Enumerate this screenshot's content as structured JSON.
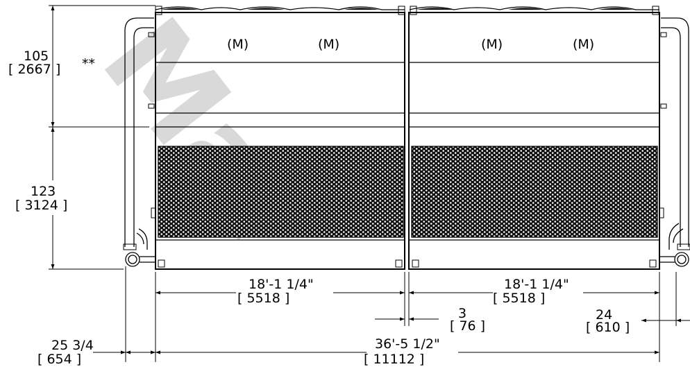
{
  "watermark": "Mar",
  "logo_mark": "(M)",
  "dimensions": {
    "upper_height": "105",
    "upper_height_metric": "[ 2667 ]",
    "upper_height_note": "**",
    "lower_height": "123",
    "lower_height_metric": "[ 3124 ]",
    "left_offset": "25 3/4",
    "left_offset_metric": "[ 654 ]",
    "cell_width_left": "18'-1 1/4\"",
    "cell_width_left_metric": "[ 5518 ]",
    "gap": "3",
    "gap_metric": "[ 76 ]",
    "cell_width_right": "18'-1 1/4\"",
    "cell_width_right_metric": "[ 5518 ]",
    "right_offset": "24",
    "right_offset_metric": "[ 610 ]",
    "overall_width": "36'-5 1/2\"",
    "overall_width_metric": "[ 11112 ]"
  },
  "colors": {
    "line": "#000000",
    "watermark": "#d9d9d9",
    "background": "#ffffff"
  }
}
